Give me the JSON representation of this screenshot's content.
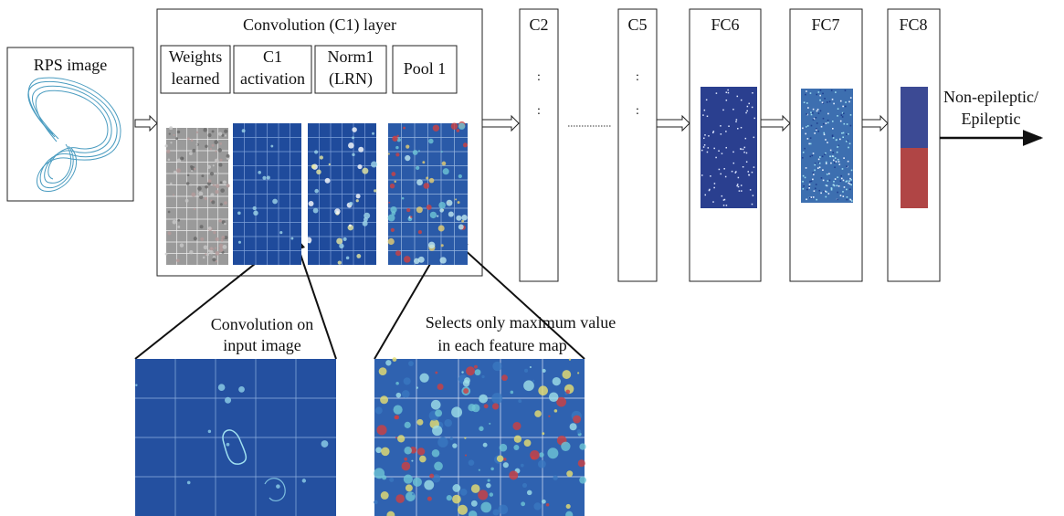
{
  "input": {
    "label": "RPS image"
  },
  "conv_layer": {
    "title": "Convolution (C1) layer",
    "stages": [
      {
        "lines": [
          "Weights",
          "learned"
        ]
      },
      {
        "lines": [
          "C1",
          "activation"
        ]
      },
      {
        "lines": [
          "Norm1",
          "(LRN)"
        ]
      },
      {
        "lines": [
          "Pool 1"
        ]
      }
    ]
  },
  "layers": [
    {
      "label": "C2"
    },
    {
      "label": "C5"
    },
    {
      "label": "FC6"
    },
    {
      "label": "FC7"
    },
    {
      "label": "FC8"
    }
  ],
  "output": {
    "lines": [
      "Non-epileptic/",
      "Epileptic"
    ]
  },
  "callouts": [
    {
      "lines": [
        "Convolution on",
        "input image"
      ]
    },
    {
      "lines": [
        "Selects only maximum value",
        "in each feature map"
      ]
    }
  ]
}
